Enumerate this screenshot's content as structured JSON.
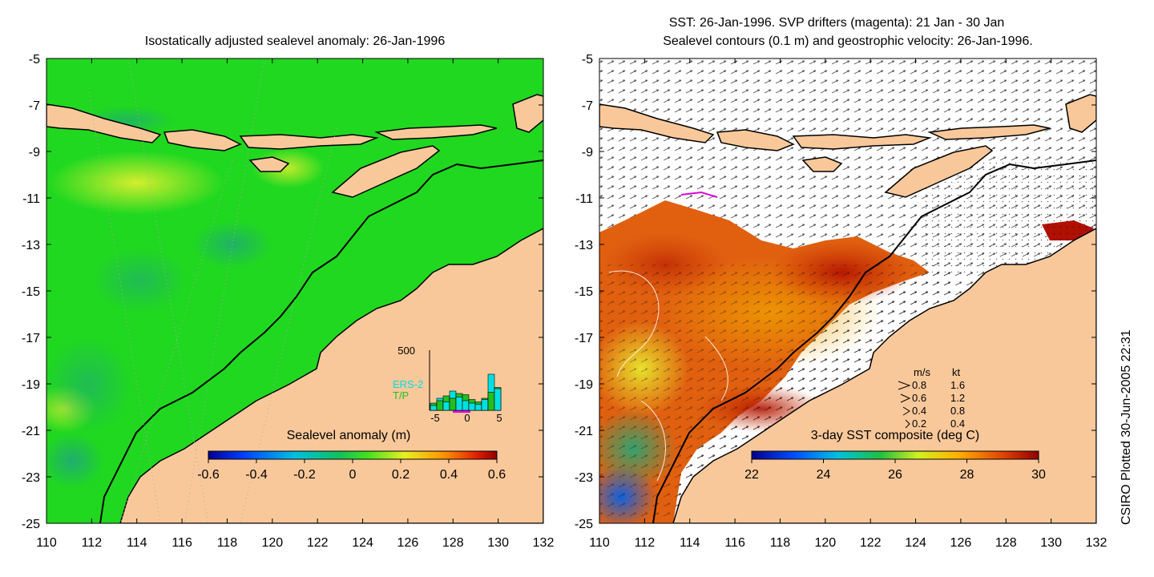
{
  "left_panel": {
    "title": "Isostatically adjusted sealevel anomaly: 26-Jan-1996",
    "colorbar": {
      "label": "Sealevel anomaly (m)",
      "ticks": [
        "-0.6",
        "-0.4",
        "-0.2",
        "0",
        "0.2",
        "0.4",
        "0.6"
      ],
      "range": [
        -0.6,
        0.6
      ]
    },
    "histogram": {
      "y_max_label": "500",
      "x_tick_labels": [
        "-5",
        "0",
        "5"
      ],
      "legend": [
        {
          "name": "ERS-2",
          "color": "#00e0e0"
        },
        {
          "name": "T/P",
          "color": "#20c020"
        }
      ],
      "bins": [
        {
          "ers2": 40,
          "tp": 60
        },
        {
          "ers2": 100,
          "tp": 80
        },
        {
          "ers2": 70,
          "tp": 120
        },
        {
          "ers2": 160,
          "tp": 100
        },
        {
          "ers2": 110,
          "tp": 140
        },
        {
          "ers2": 80,
          "tp": 130
        },
        {
          "ers2": 60,
          "tp": 90
        },
        {
          "ers2": 50,
          "tp": 70
        },
        {
          "ers2": 90,
          "tp": 100
        },
        {
          "ers2": 300,
          "tp": 150
        },
        {
          "ers2": 180,
          "tp": 190
        }
      ]
    }
  },
  "right_panel": {
    "title_line1": "SST: 26-Jan-1996. SVP drifters (magenta): 21 Jan - 30 Jan",
    "title_line2": "Sealevel contours (0.1 m) and geostrophic velocity: 26-Jan-1996.",
    "colorbar": {
      "label": "3-day SST composite (deg C)",
      "ticks": [
        "22",
        "24",
        "26",
        "28",
        "30"
      ],
      "range": [
        22,
        30
      ]
    },
    "velocity_legend": {
      "header_ms": "m/s",
      "header_kt": "kt",
      "rows": [
        {
          "ms": "0.8",
          "kt": "1.6"
        },
        {
          "ms": "0.6",
          "kt": "1.2"
        },
        {
          "ms": "0.4",
          "kt": "0.8"
        },
        {
          "ms": "0.2",
          "kt": "0.4"
        }
      ]
    }
  },
  "axes": {
    "lat_ticks": [
      "-5",
      "-7",
      "-9",
      "-11",
      "-13",
      "-15",
      "-17",
      "-19",
      "-21",
      "-23",
      "-25"
    ],
    "lon_ticks": [
      "110",
      "112",
      "114",
      "116",
      "118",
      "120",
      "122",
      "124",
      "126",
      "128",
      "130",
      "132"
    ],
    "lat_range": [
      -25,
      -5
    ],
    "lon_range": [
      110,
      132
    ]
  },
  "credit": "CSIRO Plotted 30-Jun-2005 22:31",
  "colors": {
    "land": "#f9c89a",
    "ocean_green": "#20d820",
    "coast": "#000000",
    "cloud": "#ffffff"
  }
}
